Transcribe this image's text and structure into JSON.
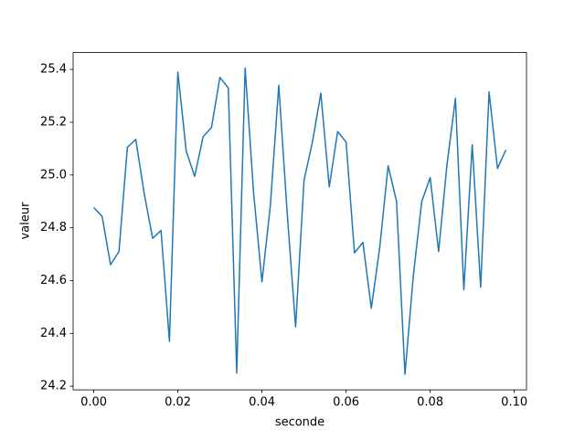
{
  "chart_data": {
    "type": "line",
    "xlabel": "seconde",
    "ylabel": "valeur",
    "x": [
      0,
      0.002,
      0.004,
      0.006,
      0.008,
      0.01,
      0.012,
      0.014,
      0.016,
      0.018,
      0.02,
      0.022,
      0.024,
      0.026,
      0.028,
      0.03,
      0.032,
      0.034,
      0.036,
      0.038,
      0.04,
      0.042,
      0.044,
      0.046,
      0.048,
      0.05,
      0.052,
      0.054,
      0.056,
      0.058,
      0.06,
      0.062,
      0.064,
      0.066,
      0.068,
      0.07,
      0.072,
      0.074,
      0.076,
      0.078,
      0.08,
      0.082,
      0.084,
      0.086,
      0.088,
      0.09,
      0.092,
      0.094,
      0.096,
      0.098
    ],
    "series": [
      {
        "color": "#1f77b4",
        "values": [
          24.877,
          24.843,
          24.66,
          24.71,
          25.105,
          25.135,
          24.93,
          24.76,
          24.79,
          24.37,
          25.39,
          25.09,
          24.995,
          25.145,
          25.18,
          25.37,
          25.33,
          24.25,
          25.405,
          24.935,
          24.595,
          24.885,
          25.34,
          24.855,
          24.425,
          24.98,
          25.125,
          25.31,
          24.955,
          25.165,
          25.125,
          24.705,
          24.745,
          24.495,
          24.725,
          25.035,
          24.9,
          24.245,
          24.62,
          24.9,
          24.99,
          24.71,
          25.04,
          25.29,
          24.565,
          25.115,
          24.575,
          25.315,
          25.025,
          25.095
        ]
      }
    ],
    "xlim": [
      -0.0049,
      0.1029
    ],
    "xticks": [
      {
        "value": 0,
        "label": "0.00"
      },
      0.02,
      0.04,
      0.06,
      0.08,
      {
        "value": 0.1,
        "label": "0.10"
      }
    ],
    "ylim": [
      24.186,
      25.464
    ],
    "yticks": [
      24.2,
      24.4,
      24.6,
      24.8,
      {
        "value": 25,
        "label": "25.0"
      },
      25.2,
      25.4
    ],
    "grid": false
  }
}
